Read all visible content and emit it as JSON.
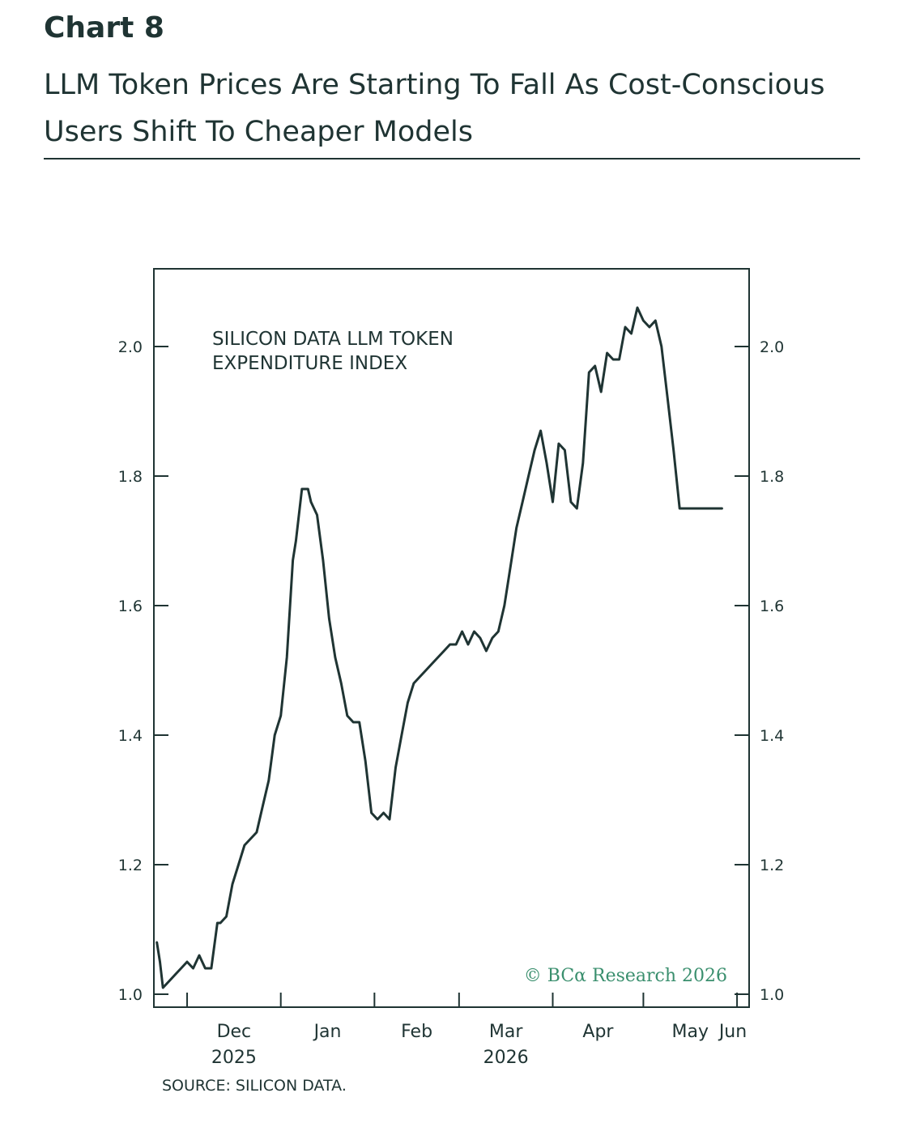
{
  "header": {
    "chart_label": "Chart 8",
    "title": "LLM Token Prices Are Starting To Fall As Cost-Conscious Users Shift To Cheaper Models"
  },
  "source": "SOURCE: SILICON DATA.",
  "watermark": "© BCα Research 2026",
  "colors": {
    "line": "#1f3433",
    "watermark": "#3a8f6e"
  },
  "chart_data": {
    "type": "line",
    "title": "",
    "xlabel": "",
    "ylabel": "",
    "annotation_lines": [
      "SILICON DATA LLM TOKEN",
      "EXPENDITURE INDEX"
    ],
    "ylim": [
      0.98,
      2.12
    ],
    "yticks": [
      1.0,
      1.2,
      1.4,
      1.6,
      1.8,
      2.0
    ],
    "ytick_labels": [
      "1.0",
      "1.2",
      "1.4",
      "1.6",
      "1.8",
      "2.0"
    ],
    "xlim": [
      "2025-11-20",
      "2026-06-05"
    ],
    "xticks": [
      {
        "date": "2025-12-01",
        "label": "Dec",
        "label2": "2025"
      },
      {
        "date": "2026-01-01",
        "label": "Jan",
        "label2": ""
      },
      {
        "date": "2026-02-01",
        "label": "Feb",
        "label2": ""
      },
      {
        "date": "2026-03-01",
        "label": "Mar",
        "label2": "2026"
      },
      {
        "date": "2026-04-01",
        "label": "Apr",
        "label2": ""
      },
      {
        "date": "2026-05-01",
        "label": "May",
        "label2": ""
      },
      {
        "date": "2026-06-01",
        "label": "Jun",
        "label2": ""
      }
    ],
    "grid": false,
    "legend": "none",
    "series": [
      {
        "name": "",
        "x": [
          "2025-11-21",
          "2025-11-22",
          "2025-11-23",
          "2025-11-25",
          "2025-11-27",
          "2025-11-29",
          "2025-12-01",
          "2025-12-03",
          "2025-12-05",
          "2025-12-07",
          "2025-12-09",
          "2025-12-11",
          "2025-12-12",
          "2025-12-14",
          "2025-12-16",
          "2025-12-18",
          "2025-12-20",
          "2025-12-22",
          "2025-12-24",
          "2025-12-26",
          "2025-12-28",
          "2025-12-30",
          "2026-01-01",
          "2026-01-03",
          "2026-01-05",
          "2026-01-06",
          "2026-01-08",
          "2026-01-10",
          "2026-01-11",
          "2026-01-13",
          "2026-01-15",
          "2026-01-17",
          "2026-01-19",
          "2026-01-21",
          "2026-01-23",
          "2026-01-25",
          "2026-01-27",
          "2026-01-29",
          "2026-01-31",
          "2026-02-02",
          "2026-02-04",
          "2026-02-06",
          "2026-02-08",
          "2026-02-10",
          "2026-02-12",
          "2026-02-14",
          "2026-02-16",
          "2026-02-18",
          "2026-02-20",
          "2026-02-22",
          "2026-02-24",
          "2026-02-26",
          "2026-02-28",
          "2026-03-02",
          "2026-03-04",
          "2026-03-06",
          "2026-03-08",
          "2026-03-10",
          "2026-03-12",
          "2026-03-14",
          "2026-03-16",
          "2026-03-18",
          "2026-03-20",
          "2026-03-22",
          "2026-03-24",
          "2026-03-26",
          "2026-03-28",
          "2026-03-30",
          "2026-04-01",
          "2026-04-03",
          "2026-04-05",
          "2026-04-07",
          "2026-04-09",
          "2026-04-11",
          "2026-04-13",
          "2026-04-15",
          "2026-04-17",
          "2026-04-19",
          "2026-04-21",
          "2026-04-23",
          "2026-04-25",
          "2026-04-27",
          "2026-04-29",
          "2026-05-01",
          "2026-05-03",
          "2026-05-05",
          "2026-05-07",
          "2026-05-09",
          "2026-05-11",
          "2026-05-13",
          "2026-05-15",
          "2026-05-17",
          "2026-05-19",
          "2026-05-21",
          "2026-05-23",
          "2026-05-25",
          "2026-05-27"
        ],
        "y": [
          1.08,
          1.05,
          1.01,
          1.02,
          1.03,
          1.04,
          1.05,
          1.04,
          1.06,
          1.04,
          1.04,
          1.11,
          1.11,
          1.12,
          1.17,
          1.2,
          1.23,
          1.24,
          1.25,
          1.29,
          1.33,
          1.4,
          1.43,
          1.52,
          1.67,
          1.7,
          1.78,
          1.78,
          1.76,
          1.74,
          1.67,
          1.58,
          1.52,
          1.48,
          1.43,
          1.42,
          1.42,
          1.36,
          1.28,
          1.27,
          1.28,
          1.27,
          1.35,
          1.4,
          1.45,
          1.48,
          1.49,
          1.5,
          1.51,
          1.52,
          1.53,
          1.54,
          1.54,
          1.56,
          1.54,
          1.56,
          1.55,
          1.53,
          1.55,
          1.56,
          1.6,
          1.66,
          1.72,
          1.76,
          1.8,
          1.84,
          1.87,
          1.82,
          1.76,
          1.85,
          1.84,
          1.76,
          1.75,
          1.82,
          1.96,
          1.97,
          1.93,
          1.99,
          1.98,
          1.98,
          2.03,
          2.02,
          2.06,
          2.04,
          2.03,
          2.04,
          2.0,
          1.92,
          1.84,
          1.75,
          1.75,
          1.75,
          1.75,
          1.75,
          1.75,
          1.75,
          1.75
        ]
      }
    ]
  }
}
